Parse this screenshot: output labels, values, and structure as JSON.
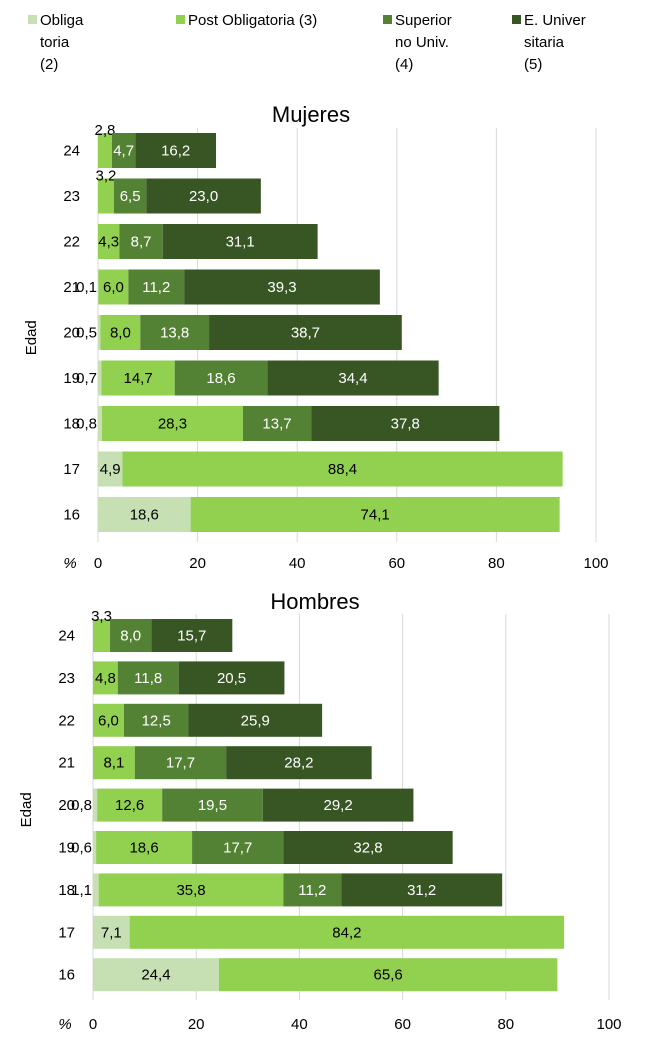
{
  "chart_data": [
    {
      "type": "bar",
      "orientation": "horizontal",
      "stacked": true,
      "title": "Mujeres",
      "ylabel": "Edad",
      "xlabel": "%",
      "xlim": [
        0,
        100
      ],
      "xticks": [
        "0",
        "20",
        "40",
        "60",
        "80",
        "100"
      ],
      "grid": true,
      "categories": [
        "24",
        "23",
        "22",
        "21",
        "20",
        "19",
        "18",
        "17",
        "16"
      ],
      "series": [
        {
          "name": "Obliga\ntoria\n(2)",
          "values": [
            null,
            null,
            null,
            0.1,
            0.5,
            0.7,
            0.8,
            4.9,
            18.6
          ],
          "labels": [
            "",
            "",
            "",
            "0,1",
            "0,5",
            "0,7",
            "0,8",
            "4,9",
            "18,6"
          ]
        },
        {
          "name": "Post Obligatoria (3)",
          "values": [
            2.8,
            3.2,
            4.3,
            6.0,
            8.0,
            14.7,
            28.3,
            88.4,
            74.1
          ],
          "labels": [
            "2,8",
            "3,2",
            "4,3",
            "6,0",
            "8,0",
            "14,7",
            "28,3",
            "88,4",
            "74,1"
          ]
        },
        {
          "name": "Superior\nno Univ.\n(4)",
          "values": [
            4.7,
            6.5,
            8.7,
            11.2,
            13.8,
            18.6,
            13.7,
            null,
            null
          ],
          "labels": [
            "4,7",
            "6,5",
            "8,7",
            "11,2",
            "13,8",
            "18,6",
            "13,7",
            "",
            ""
          ]
        },
        {
          "name": "E. Univer\nsitaria\n(5)",
          "values": [
            16.2,
            23.0,
            31.1,
            39.3,
            38.7,
            34.4,
            37.8,
            null,
            null
          ],
          "labels": [
            "16,2",
            "23,0",
            "31,1",
            "39,3",
            "38,7",
            "34,4",
            "37,8",
            "",
            ""
          ]
        }
      ]
    },
    {
      "type": "bar",
      "orientation": "horizontal",
      "stacked": true,
      "title": "Hombres",
      "ylabel": "Edad",
      "xlabel": "%",
      "xlim": [
        0,
        100
      ],
      "xticks": [
        "0",
        "20",
        "40",
        "60",
        "80",
        "100"
      ],
      "grid": true,
      "categories": [
        "24",
        "23",
        "22",
        "21",
        "20",
        "19",
        "18",
        "17",
        "16"
      ],
      "series": [
        {
          "name": "Obliga\ntoria\n(2)",
          "values": [
            null,
            null,
            null,
            null,
            0.8,
            0.6,
            1.1,
            7.1,
            24.4
          ],
          "labels": [
            "",
            "",
            "",
            "",
            "0,8",
            "0,6",
            "1,1",
            "7,1",
            "24,4"
          ]
        },
        {
          "name": "Post Obligatoria (3)",
          "values": [
            3.3,
            4.8,
            6.0,
            8.1,
            12.6,
            18.6,
            35.8,
            84.2,
            65.6
          ],
          "labels": [
            "3,3",
            "4,8",
            "6,0",
            "8,1",
            "12,6",
            "18,6",
            "35,8",
            "84,2",
            "65,6"
          ]
        },
        {
          "name": "Superior\nno Univ.\n(4)",
          "values": [
            8.0,
            11.8,
            12.5,
            17.7,
            19.5,
            17.7,
            11.2,
            null,
            null
          ],
          "labels": [
            "8,0",
            "11,8",
            "12,5",
            "17,7",
            "19,5",
            "17,7",
            "11,2",
            "",
            ""
          ]
        },
        {
          "name": "E. Univer\nsitaria\n(5)",
          "values": [
            15.7,
            20.5,
            25.9,
            28.2,
            29.2,
            32.8,
            31.2,
            null,
            null
          ],
          "labels": [
            "15,7",
            "20,5",
            "25,9",
            "28,2",
            "29,2",
            "32,8",
            "31,2",
            "",
            ""
          ]
        }
      ]
    }
  ],
  "legend": {
    "placement": "top",
    "items": [
      {
        "label": "Obliga\ntoria\n(2)",
        "color": "#c6e0b4"
      },
      {
        "label": "Post Obligatoria (3)",
        "color": "#92d050"
      },
      {
        "label": "Superior\nno Univ.\n(4)",
        "color": "#548235"
      },
      {
        "label": "E. Univer\nsitaria\n(5)",
        "color": "#375623"
      }
    ]
  }
}
